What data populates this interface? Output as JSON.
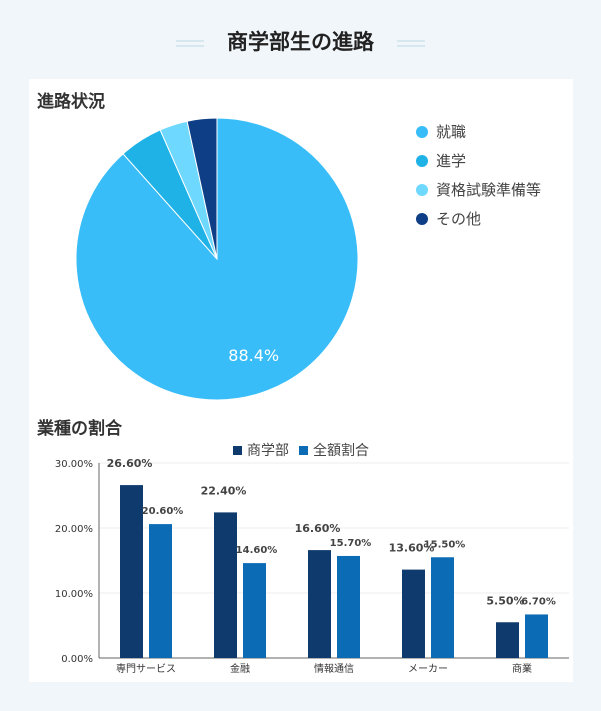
{
  "page": {
    "title": "商学部生の進路"
  },
  "colors": {
    "background": "#f0f6fa",
    "panel": "#ffffff",
    "pie": [
      "#38bdf8",
      "#1fb2e6",
      "#6fd8ff",
      "#0e3f86"
    ],
    "bar_series": [
      "#0e3a6e",
      "#0b6bb5"
    ]
  },
  "chart_data": [
    {
      "type": "pie",
      "title": "進路状況",
      "legend_position": "right",
      "slices": [
        {
          "label": "就職",
          "value": 88.4,
          "color": "#38bdf8"
        },
        {
          "label": "進学",
          "value": 5.0,
          "color": "#1fb2e6"
        },
        {
          "label": "資格試験準備等",
          "value": 3.2,
          "color": "#6fd8ff"
        },
        {
          "label": "その他",
          "value": 3.4,
          "color": "#0e3f86"
        }
      ],
      "data_labels": [
        "88.4%",
        "",
        "",
        ""
      ]
    },
    {
      "type": "bar",
      "title": "業種の割合",
      "legend_position": "top",
      "categories": [
        "専門サービス",
        "金融",
        "情報通信",
        "メーカー",
        "商業"
      ],
      "series": [
        {
          "name": "商学部",
          "values": [
            26.6,
            22.4,
            16.6,
            13.6,
            5.5
          ],
          "color": "#0e3a6e"
        },
        {
          "name": "全額割合",
          "values": [
            20.6,
            14.6,
            15.7,
            15.5,
            6.7
          ],
          "color": "#0b6bb5"
        }
      ],
      "data_labels": [
        [
          "26.60%",
          "22.40%",
          "16.60%",
          "13.60%",
          "5.50%"
        ],
        [
          "20.60%",
          "14.60%",
          "15.70%",
          "15.50%",
          "6.70%"
        ]
      ],
      "y_ticks": [
        "0.00%",
        "10.00%",
        "20.00%",
        "30.00%"
      ],
      "ylim": [
        0,
        30
      ],
      "grid": true
    }
  ]
}
